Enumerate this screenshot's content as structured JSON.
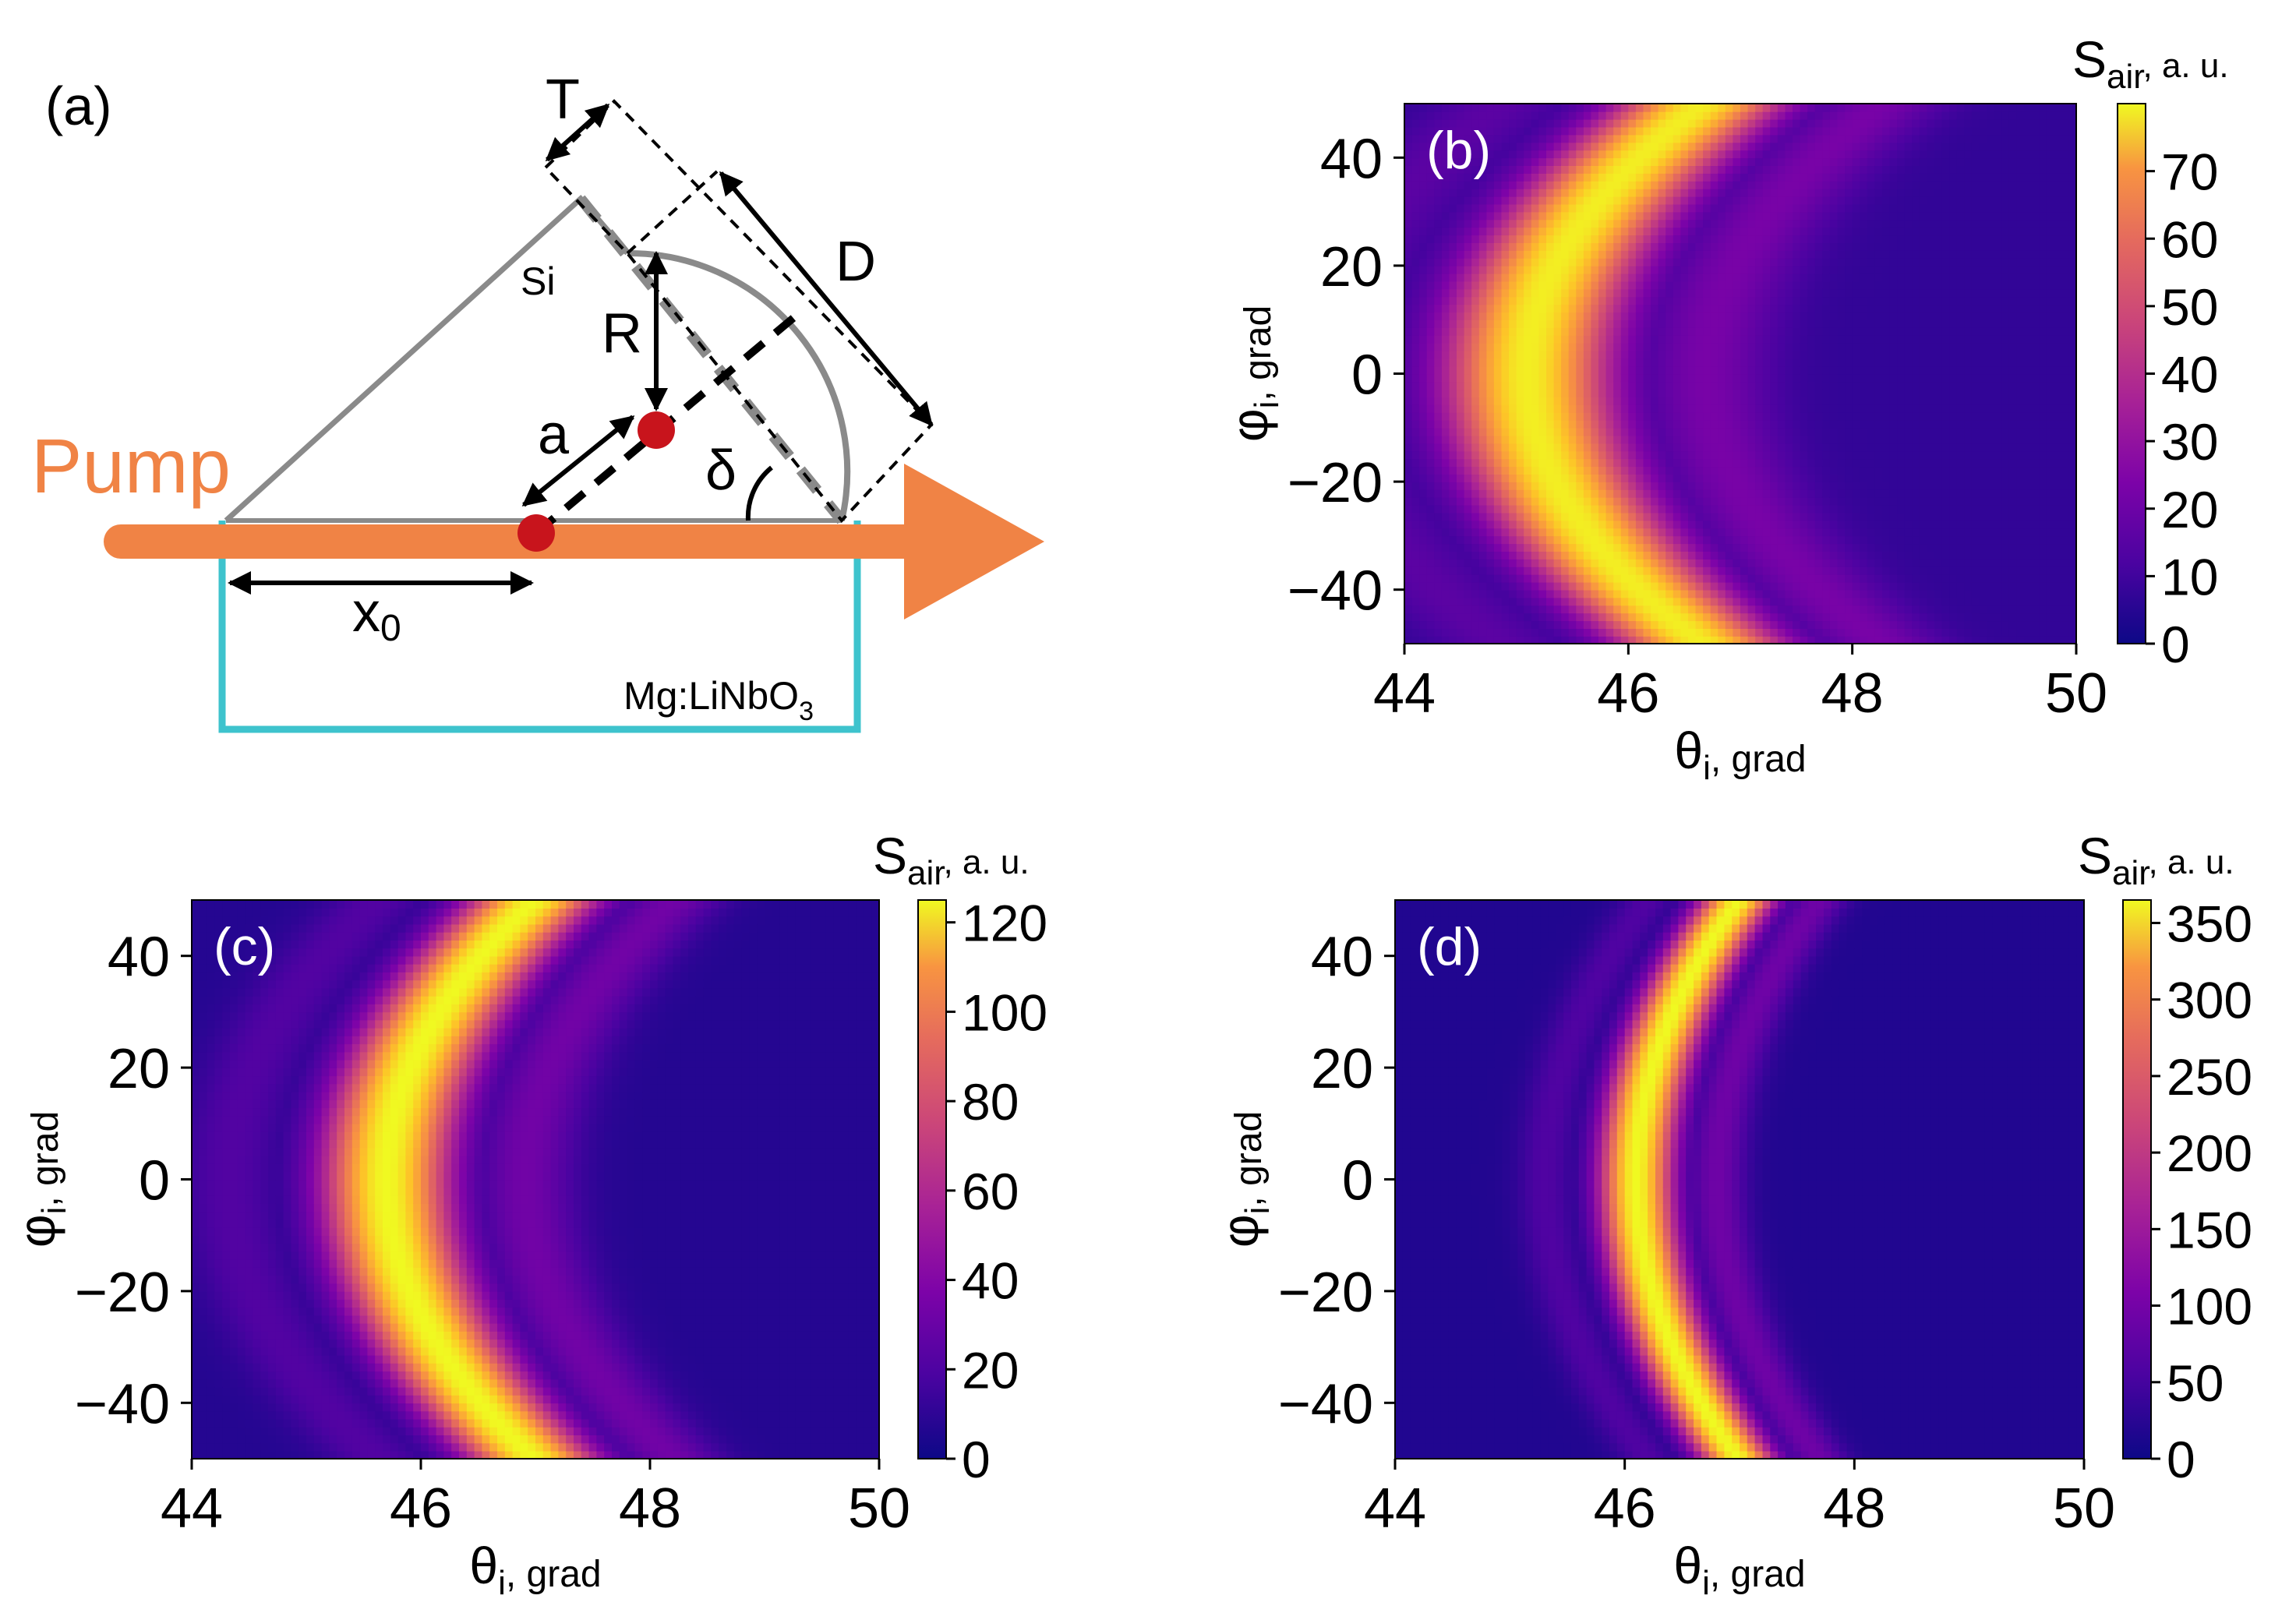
{
  "schematic": {
    "panel_label": "(a)",
    "pump_label": "Pump",
    "prism_material": "Si",
    "crystal_material": "Mg:LiNbO",
    "crystal_subscript": "3",
    "dimension_labels": {
      "T": "T",
      "D": "D",
      "R": "R",
      "a": "a",
      "delta": "δ",
      "x0_main": "x",
      "x0_sub": "0"
    },
    "colors": {
      "pump": "#f08345",
      "prism": "#8a8a8a",
      "crystal": "#3ec3cd",
      "source": "#c8141c"
    }
  },
  "chart_data": [
    {
      "type": "heatmap",
      "panel_label": "(b)",
      "xlabel_main": "θ",
      "xlabel_sub": "i",
      "xlabel_unit": ", grad",
      "ylabel_main": "φ",
      "ylabel_sub": "i",
      "ylabel_unit": ", grad",
      "xlim": [
        44,
        50
      ],
      "ylim": [
        -50,
        50
      ],
      "xticks": [
        44,
        46,
        48,
        50
      ],
      "yticks": [
        -40,
        -20,
        0,
        20,
        40
      ],
      "colorbar": {
        "title_main": "S",
        "title_sub": "air",
        "title_unit": ", a. u.",
        "range": [
          0,
          80
        ],
        "ticks": [
          0,
          10,
          20,
          30,
          40,
          50,
          60,
          70
        ]
      },
      "model": {
        "vertex_theta": 45.1,
        "width": 0.5,
        "curvature": 40,
        "peak_value": 78,
        "background": 6
      }
    },
    {
      "type": "heatmap",
      "panel_label": "(c)",
      "xlabel_main": "θ",
      "xlabel_sub": "i",
      "xlabel_unit": ", grad",
      "ylabel_main": "φ",
      "ylabel_sub": "i",
      "ylabel_unit": ", grad",
      "xlim": [
        44,
        50
      ],
      "ylim": [
        -50,
        50
      ],
      "xticks": [
        44,
        46,
        48,
        50
      ],
      "yticks": [
        -40,
        -20,
        0,
        20,
        40
      ],
      "colorbar": {
        "title_main": "S",
        "title_sub": "air",
        "title_unit": ", a. u.",
        "range": [
          0,
          125
        ],
        "ticks": [
          0,
          20,
          40,
          60,
          80,
          100,
          120
        ]
      },
      "model": {
        "vertex_theta": 45.7,
        "width": 0.38,
        "curvature": 44,
        "peak_value": 125,
        "background": 6
      }
    },
    {
      "type": "heatmap",
      "panel_label": "(d)",
      "xlabel_main": "θ",
      "xlabel_sub": "i",
      "xlabel_unit": ", grad",
      "ylabel_main": "φ",
      "ylabel_sub": "i",
      "ylabel_unit": ", grad",
      "xlim": [
        44,
        50
      ],
      "ylim": [
        -50,
        50
      ],
      "xticks": [
        44,
        46,
        48,
        50
      ],
      "yticks": [
        -40,
        -20,
        0,
        20,
        40
      ],
      "colorbar": {
        "title_main": "S",
        "title_sub": "air",
        "title_unit": ", a. u.",
        "range": [
          0,
          365
        ],
        "ticks": [
          0,
          50,
          100,
          150,
          200,
          250,
          300,
          350
        ]
      },
      "model": {
        "vertex_theta": 46.1,
        "width": 0.22,
        "curvature": 53,
        "peak_value": 365,
        "background": 15
      }
    }
  ]
}
